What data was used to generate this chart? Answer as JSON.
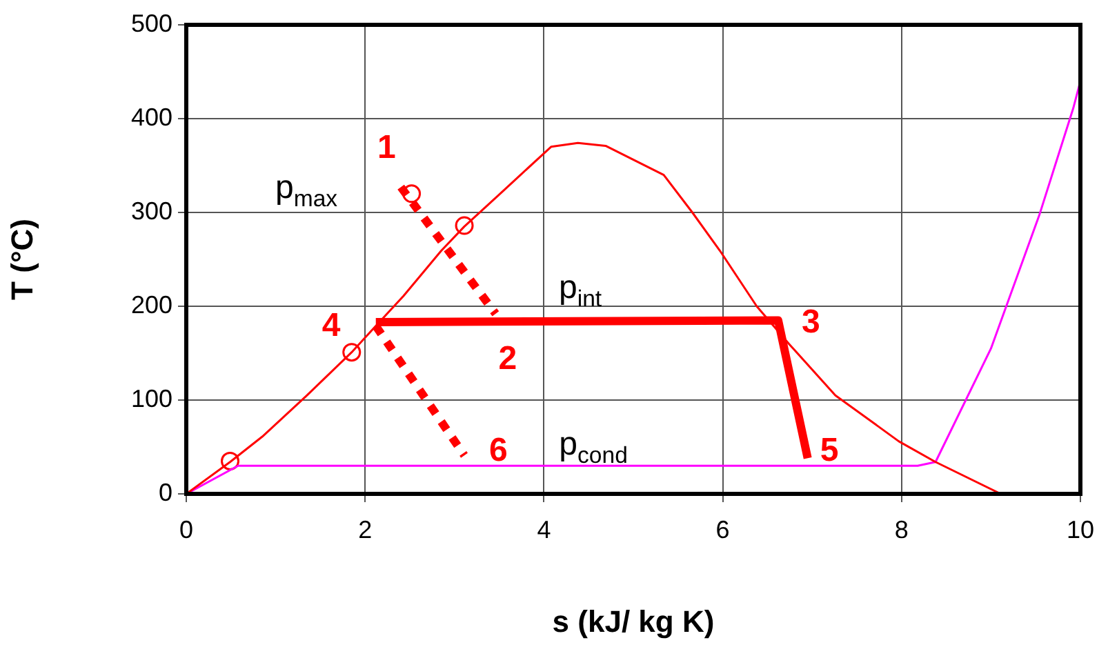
{
  "chart_data": {
    "type": "line",
    "xlabel": "s (kJ/ kg K)",
    "ylabel": "T (°C)",
    "xlim": [
      0,
      10
    ],
    "xticks": [
      0,
      2,
      4,
      6,
      8,
      10
    ],
    "ylim": [
      0,
      500
    ],
    "yticks": [
      0,
      100,
      200,
      300,
      400,
      500
    ],
    "grid": true,
    "legend": false,
    "series": [
      {
        "color": "#ff0000",
        "line_style": "solid",
        "marker": "none",
        "x": [
          0,
          0.49,
          0.85,
          1.35,
          1.85,
          2.12,
          2.43,
          2.85,
          3.11,
          3.51,
          4.08,
          4.38,
          4.69,
          5.34,
          5.66,
          5.97,
          6.38,
          6.74,
          7.26,
          7.97,
          8.38,
          9.11
        ],
        "values": [
          0,
          34,
          61,
          105,
          151,
          179,
          211,
          259,
          285,
          320,
          370,
          374,
          371,
          340,
          300,
          259,
          200,
          160,
          105,
          56,
          34,
          0
        ]
      },
      {
        "color": "#ff00ff",
        "line_style": "solid",
        "marker": "none",
        "x": [
          0,
          0.58,
          8.18,
          8.38,
          9.0,
          9.54,
          9.92,
          10
        ],
        "values": [
          0,
          30,
          30,
          34,
          155,
          297,
          411,
          440
        ]
      },
      {
        "color": "#ff0000",
        "line_style": "solid",
        "marker": "none",
        "x": [
          2.12,
          6.62,
          6.95
        ],
        "values": [
          183,
          185,
          38
        ]
      },
      {
        "color": "#ff0000",
        "line_style": "dotted",
        "marker": "none",
        "x": [
          2.4,
          3.46
        ],
        "values": [
          327,
          192
        ]
      },
      {
        "color": "#ff0000",
        "line_style": "dotted",
        "marker": "none",
        "x": [
          2.12,
          3.11
        ],
        "values": [
          179,
          41
        ]
      },
      {
        "type": "scatter",
        "color": "#ff0000",
        "marker": "circle",
        "x": [
          0.49,
          1.85,
          3.11,
          2.52
        ],
        "values": [
          35,
          151,
          286,
          320
        ]
      }
    ],
    "annotations": [
      {
        "text": "1",
        "x": 2.4,
        "y": 327
      },
      {
        "text": "2",
        "x": 3.46,
        "y": 192
      },
      {
        "text": "3",
        "x": 6.62,
        "y": 185
      },
      {
        "text": "4",
        "x": 2.12,
        "y": 183
      },
      {
        "text": "5",
        "x": 6.95,
        "y": 38
      },
      {
        "text": "6",
        "x": 3.11,
        "y": 41
      },
      {
        "text": "p$_{max}$",
        "x": 2.4,
        "y": 327
      },
      {
        "text": "p$_{int}$",
        "x": 4.46,
        "y": 184
      },
      {
        "text": "p$_{cond}$",
        "x": 4.54,
        "y": 30
      }
    ]
  }
}
